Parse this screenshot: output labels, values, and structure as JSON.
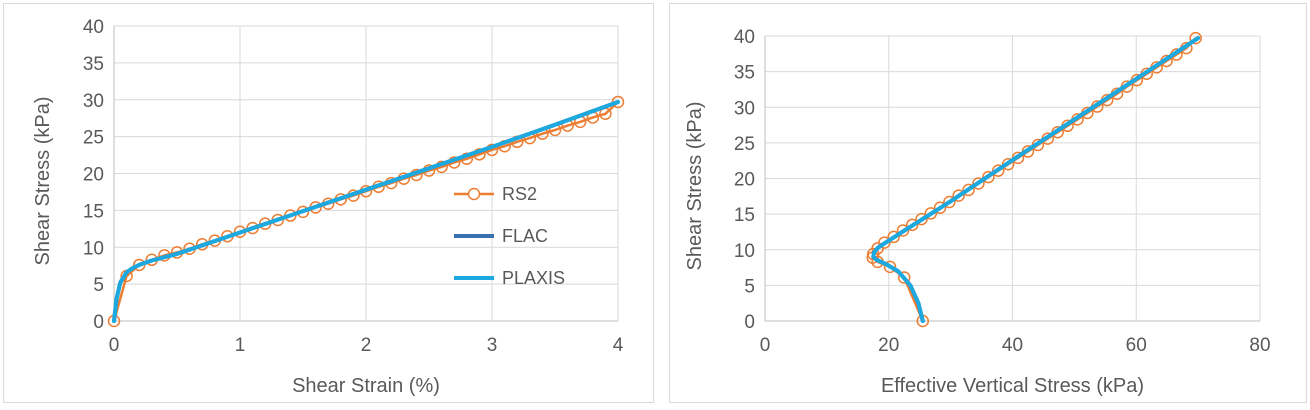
{
  "chart_data": [
    {
      "type": "line",
      "xlabel": "Shear Strain (%)",
      "ylabel": "Shear Stress (kPa)",
      "xlim": [
        0,
        4
      ],
      "ylim": [
        0,
        40
      ],
      "xticks": [
        0,
        1,
        2,
        3,
        4
      ],
      "yticks": [
        0,
        5,
        10,
        15,
        20,
        25,
        30,
        35,
        40
      ],
      "grid": "vertical and horizontal major gridlines",
      "legend": "right, inside plot",
      "series": [
        {
          "name": "RS2",
          "color": "#ed7d31",
          "marker": "open circle",
          "x": [
            0,
            0.1,
            0.2,
            0.3,
            0.4,
            0.5,
            0.6,
            0.7,
            0.8,
            0.9,
            1.0,
            1.1,
            1.2,
            1.3,
            1.4,
            1.5,
            1.6,
            1.7,
            1.8,
            1.9,
            2.0,
            2.1,
            2.2,
            2.3,
            2.4,
            2.5,
            2.6,
            2.7,
            2.8,
            2.9,
            3.0,
            3.1,
            3.2,
            3.3,
            3.4,
            3.5,
            3.6,
            3.7,
            3.8,
            3.9,
            4.0
          ],
          "y": [
            0,
            6.1,
            7.6,
            8.3,
            8.9,
            9.3,
            9.8,
            10.4,
            10.9,
            11.5,
            12.1,
            12.6,
            13.2,
            13.7,
            14.3,
            14.8,
            15.4,
            15.9,
            16.5,
            17.0,
            17.6,
            18.2,
            18.7,
            19.3,
            19.8,
            20.4,
            20.9,
            21.5,
            22.0,
            22.6,
            23.2,
            23.7,
            24.3,
            24.8,
            25.4,
            25.9,
            26.5,
            27.0,
            27.6,
            28.1,
            29.7
          ]
        },
        {
          "name": "FLAC",
          "color": "#3a6fb0",
          "marker": "none",
          "x": [
            0,
            0.02,
            0.05,
            0.1,
            0.15,
            0.2,
            0.3,
            0.5,
            1.0,
            1.5,
            2.0,
            2.5,
            3.0,
            3.5,
            4.0
          ],
          "y": [
            0,
            3.0,
            5.2,
            6.6,
            7.2,
            7.6,
            8.2,
            9.1,
            12.0,
            14.9,
            17.8,
            20.7,
            23.6,
            26.6,
            29.7
          ]
        },
        {
          "name": "PLAXIS",
          "color": "#1ca9e0",
          "marker": "none",
          "x": [
            0,
            0.02,
            0.05,
            0.1,
            0.15,
            0.2,
            0.3,
            0.5,
            1.0,
            1.5,
            2.0,
            2.5,
            3.0,
            3.5,
            4.0
          ],
          "y": [
            0,
            3.0,
            5.2,
            6.6,
            7.2,
            7.6,
            8.2,
            9.1,
            12.0,
            14.9,
            17.8,
            20.7,
            23.6,
            26.6,
            29.7
          ]
        }
      ]
    },
    {
      "type": "line",
      "xlabel": "Effective Vertical Stress (kPa)",
      "ylabel": "Shear Stress (kPa)",
      "xlim": [
        0,
        80
      ],
      "ylim": [
        0,
        40
      ],
      "xticks": [
        0,
        20,
        40,
        60,
        80
      ],
      "yticks": [
        0,
        5,
        10,
        15,
        20,
        25,
        30,
        35,
        40
      ],
      "grid": "vertical and horizontal major gridlines",
      "legend": "none",
      "series": [
        {
          "name": "RS2",
          "color": "#ed7d31",
          "marker": "open circle",
          "x": [
            25.5,
            22.5,
            20.2,
            18.2,
            17.4,
            17.5,
            18.2,
            19.3,
            20.8,
            22.3,
            23.8,
            25.3,
            26.8,
            28.3,
            29.8,
            31.3,
            32.9,
            34.5,
            36.1,
            37.7,
            39.3,
            40.9,
            42.5,
            44.1,
            45.7,
            47.3,
            48.9,
            50.5,
            52.1,
            53.7,
            55.3,
            56.9,
            58.5,
            60.1,
            61.7,
            63.3,
            64.9,
            66.5,
            68.1,
            69.6
          ],
          "y": [
            0,
            6.1,
            7.6,
            8.3,
            8.9,
            9.4,
            10.2,
            11.0,
            11.8,
            12.7,
            13.5,
            14.3,
            15.1,
            15.9,
            16.7,
            17.6,
            18.4,
            19.3,
            20.2,
            21.1,
            22.0,
            22.9,
            23.8,
            24.7,
            25.6,
            26.5,
            27.4,
            28.3,
            29.2,
            30.1,
            31.0,
            31.9,
            32.9,
            33.8,
            34.7,
            35.6,
            36.5,
            37.4,
            38.3,
            39.7
          ]
        },
        {
          "name": "FLAC",
          "color": "#3a6fb0",
          "marker": "none",
          "x": [
            25.5,
            24.8,
            23.5,
            21.5,
            19.5,
            18.0,
            17.5,
            17.6,
            18.3,
            19.5,
            22.0,
            30.0,
            40.0,
            50.0,
            60.0,
            70.0
          ],
          "y": [
            0,
            2.5,
            5.0,
            7.0,
            8.0,
            8.6,
            9.0,
            9.6,
            10.3,
            11.0,
            12.4,
            16.8,
            22.6,
            28.3,
            34.0,
            39.7
          ]
        },
        {
          "name": "PLAXIS",
          "color": "#1ca9e0",
          "marker": "none",
          "x": [
            25.5,
            24.8,
            23.5,
            21.5,
            19.5,
            18.0,
            17.5,
            17.6,
            18.3,
            19.5,
            22.0,
            30.0,
            40.0,
            50.0,
            60.0,
            70.0
          ],
          "y": [
            0,
            2.5,
            5.0,
            7.0,
            8.0,
            8.6,
            9.0,
            9.6,
            10.3,
            11.0,
            12.4,
            16.8,
            22.6,
            28.3,
            34.0,
            39.7
          ]
        }
      ]
    }
  ]
}
